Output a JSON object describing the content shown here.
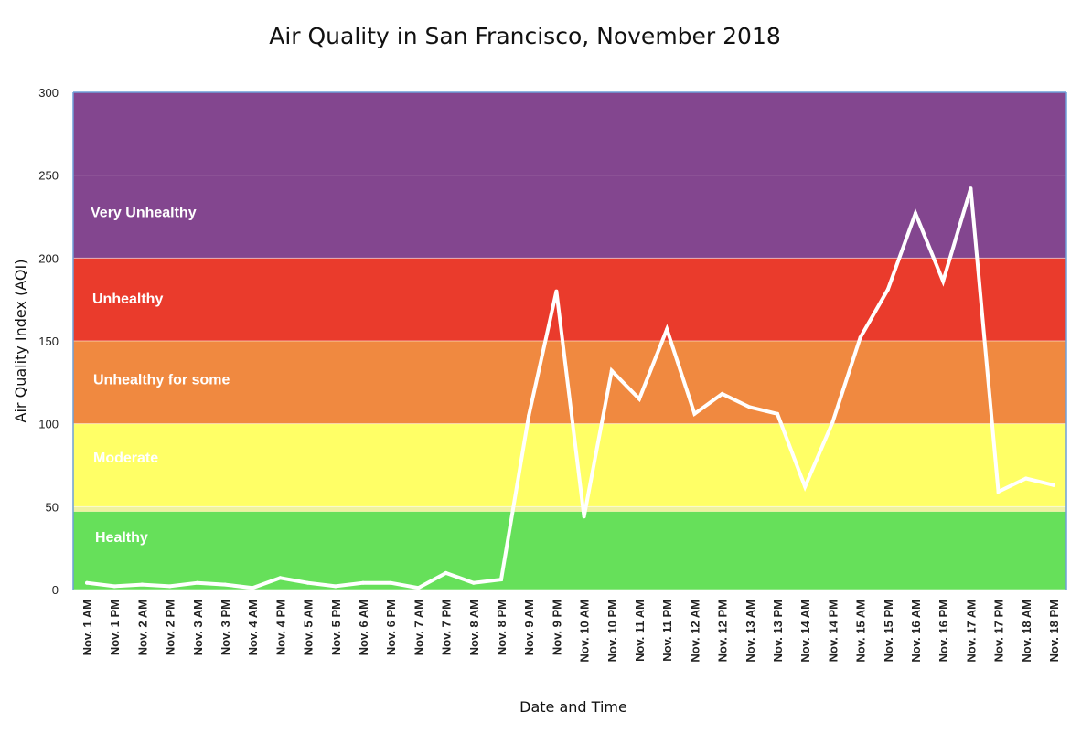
{
  "chart_data": {
    "type": "line",
    "title": "Air Quality in San Francisco, November 2018",
    "xlabel": "Date and Time",
    "ylabel": "Air Quality Index (AQI)",
    "ylim": [
      0,
      300
    ],
    "yticks": [
      0,
      50,
      100,
      150,
      200,
      250,
      300
    ],
    "grid": true,
    "categories": [
      "Nov. 1 AM",
      "Nov. 1 PM",
      "Nov. 2 AM",
      "Nov. 2 PM",
      "Nov. 3 AM",
      "Nov. 3 PM",
      "Nov. 4 AM",
      "Nov. 4 PM",
      "Nov. 5 AM",
      "Nov. 5 PM",
      "Nov. 6 AM",
      "Nov. 6 PM",
      "Nov. 7 AM",
      "Nov. 7 PM",
      "Nov. 8 AM",
      "Nov. 8 PM",
      "Nov. 9 AM",
      "Nov. 9 PM",
      "Nov. 10 AM",
      "Nov. 10 PM",
      "Nov. 11 AM",
      "Nov. 11 PM",
      "Nov. 12 AM",
      "Nov. 12 PM",
      "Nov. 13 AM",
      "Nov. 13 PM",
      "Nov. 14 AM",
      "Nov. 14 PM",
      "Nov. 15 AM",
      "Nov. 15 PM",
      "Nov. 16 AM",
      "Nov. 16 PM",
      "Nov. 17 AM",
      "Nov. 17 PM",
      "Nov. 18 AM",
      "Nov. 18 PM"
    ],
    "series": [
      {
        "color": "#ffffff",
        "values": [
          4,
          2,
          3,
          2,
          4,
          3,
          1,
          7,
          4,
          2,
          4,
          4,
          1,
          10,
          4,
          6,
          105,
          180,
          44,
          132,
          115,
          157,
          106,
          118,
          110,
          106,
          62,
          101,
          152,
          181,
          227,
          186,
          242,
          59,
          67,
          63
        ]
      }
    ],
    "bands": [
      {
        "label": "Healthy",
        "from": 0,
        "to": 47,
        "color": "#66e05a"
      },
      {
        "label": "",
        "from": 47,
        "to": 50,
        "color": "#eff2a0"
      },
      {
        "label": "Moderate",
        "from": 50,
        "to": 100,
        "color": "#ffff66"
      },
      {
        "label": "Unhealthy for some",
        "from": 100,
        "to": 150,
        "color": "#f08940"
      },
      {
        "label": "Unhealthy",
        "from": 150,
        "to": 200,
        "color": "#ea3b2c"
      },
      {
        "label": "Very Unhealthy",
        "from": 200,
        "to": 300,
        "color": "#83468f"
      }
    ]
  }
}
